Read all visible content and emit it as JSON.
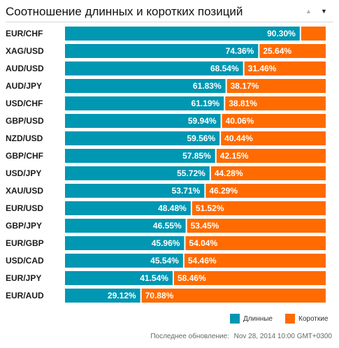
{
  "header": {
    "title": "Соотношение длинных и коротких позиций",
    "sort_up_glyph": "▲",
    "sort_down_glyph": "▼"
  },
  "colors": {
    "long": "#0097b2",
    "short": "#ff6b00",
    "label_text": "#ffffff"
  },
  "chart_data": {
    "type": "bar",
    "orientation": "horizontal",
    "stacked": true,
    "xlim": [
      0,
      100
    ],
    "categories": [
      "EUR/CHF",
      "XAG/USD",
      "AUD/USD",
      "AUD/JPY",
      "USD/CHF",
      "GBP/USD",
      "NZD/USD",
      "GBP/CHF",
      "USD/JPY",
      "XAU/USD",
      "EUR/USD",
      "GBP/JPY",
      "EUR/GBP",
      "USD/CAD",
      "EUR/JPY",
      "EUR/AUD"
    ],
    "series": [
      {
        "name": "Длинные",
        "values": [
          90.3,
          74.36,
          68.54,
          61.83,
          61.19,
          59.94,
          59.56,
          57.85,
          55.72,
          53.71,
          48.48,
          46.55,
          45.96,
          45.54,
          41.54,
          29.12
        ],
        "labels": [
          "90.30%",
          "74.36%",
          "68.54%",
          "61.83%",
          "61.19%",
          "59.94%",
          "59.56%",
          "57.85%",
          "55.72%",
          "53.71%",
          "48.48%",
          "46.55%",
          "45.96%",
          "45.54%",
          "41.54%",
          "29.12%"
        ]
      },
      {
        "name": "Короткие",
        "values": [
          9.7,
          25.64,
          31.46,
          38.17,
          38.81,
          40.06,
          40.44,
          42.15,
          44.28,
          46.29,
          51.52,
          53.45,
          54.04,
          54.46,
          58.46,
          70.88
        ],
        "labels": [
          "",
          "25.64%",
          "31.46%",
          "38.17%",
          "38.81%",
          "40.06%",
          "40.44%",
          "42.15%",
          "44.28%",
          "46.29%",
          "51.52%",
          "53.45%",
          "54.04%",
          "54.46%",
          "58.46%",
          "70.88%"
        ]
      }
    ],
    "legend_position": "bottom-right",
    "grid": false
  },
  "legend": {
    "long_label": "Длинные",
    "short_label": "Короткие"
  },
  "footer": {
    "label": "Последнее обновление:",
    "timestamp": "Nov 28, 2014 10:00 GMT+0300"
  }
}
